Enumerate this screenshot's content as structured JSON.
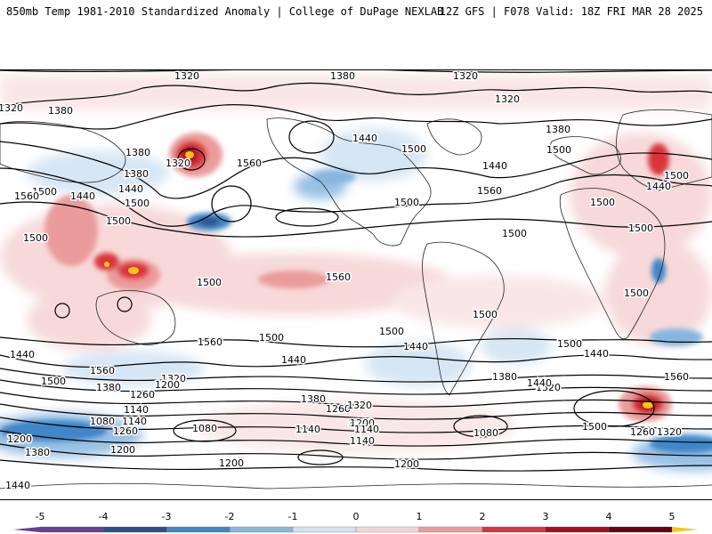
{
  "header": {
    "title_left": "850mb Temp 1981-2010 Standardized Anomaly | College of DuPage NEXLAB",
    "title_right": "12Z GFS | F078 Valid: 18Z FRI MAR 28 2025"
  },
  "colorbar": {
    "ticks": [
      "-5",
      "-4",
      "-3",
      "-2",
      "-1",
      "0",
      "1",
      "2",
      "3",
      "4",
      "5"
    ],
    "colors": {
      "minus5": "#6a3d9a",
      "minus4": "#2a4f8c",
      "minus3": "#3f86c8",
      "minus2": "#86b6e0",
      "minus1": "#cfe2f3",
      "zero": "#ffffff",
      "plus1": "#f6d3d3",
      "plus2": "#eb9b9b",
      "plus3": "#d9353a",
      "plus4": "#a3111b",
      "plus5": "#6a0010",
      "extreme": "#f5c518"
    }
  },
  "contours": {
    "labels": [
      "1320",
      "1380",
      "1320",
      "1320",
      "1380",
      "1380",
      "1320",
      "1380",
      "1440",
      "1500",
      "1560",
      "1440",
      "1500",
      "1380",
      "1320",
      "1500",
      "1440",
      "1500",
      "1560",
      "1440",
      "1500",
      "1560",
      "1500",
      "1440",
      "1500",
      "1500",
      "1500",
      "1500",
      "1500",
      "1500",
      "1500",
      "1500",
      "1500",
      "1440",
      "1440",
      "1500",
      "1560",
      "1440",
      "1560",
      "1500",
      "1380",
      "1320",
      "1200",
      "1260",
      "1440",
      "1500",
      "1380",
      "1320",
      "1260",
      "1200",
      "1140",
      "1080",
      "1260",
      "1200",
      "1380",
      "1200",
      "1140",
      "1080",
      "1140",
      "1200",
      "1080",
      "1260",
      "1320",
      "1200",
      "1140",
      "1200",
      "1200",
      "1140",
      "1380",
      "1440",
      "1500",
      "1560",
      "1320",
      "1260",
      "1380",
      "1560",
      "1320",
      "1440",
      "1500"
    ]
  }
}
